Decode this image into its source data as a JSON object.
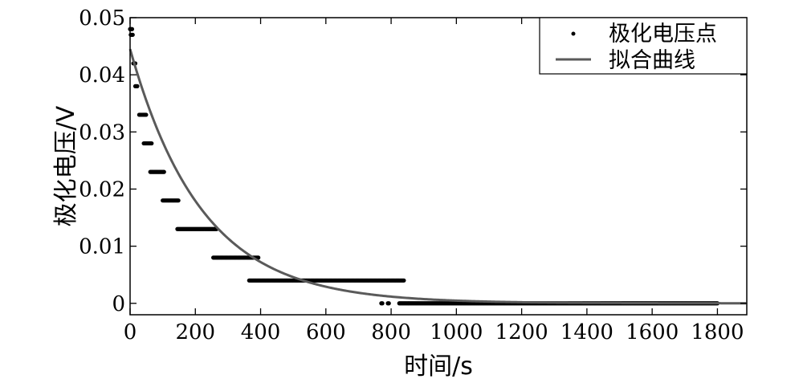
{
  "chart_data": {
    "type": "scatter",
    "xlabel": "时间/s",
    "ylabel": "极化电压/V",
    "xlim": [
      0,
      1890
    ],
    "ylim": [
      -0.002,
      0.05
    ],
    "x_ticks": [
      0,
      200,
      400,
      600,
      800,
      1000,
      1200,
      1400,
      1600,
      1800
    ],
    "x_tick_labels": [
      "0",
      "200",
      "400",
      "600",
      "800",
      "1000",
      "1200",
      "1400",
      "1600",
      "1800"
    ],
    "y_ticks": [
      0,
      0.01,
      0.02,
      0.03,
      0.04,
      0.05
    ],
    "y_tick_labels": [
      "0",
      "0.01",
      "0.02",
      "0.03",
      "0.04",
      "0.05"
    ],
    "grid": false,
    "legend_position": "top-right",
    "colors": {
      "points": "#000000",
      "fit": "#5a5a5a",
      "axes": "#000000"
    },
    "series": [
      {
        "name": "极化电压点",
        "kind": "points",
        "point_groups": [
          {
            "x_range": [
              0,
              8
            ],
            "y": 0.048
          },
          {
            "x_range": [
              2,
              8
            ],
            "y": 0.047
          },
          {
            "x_range": [
              10,
              16
            ],
            "y": 0.042
          },
          {
            "x_range": [
              16,
              24
            ],
            "y": 0.038
          },
          {
            "x_range": [
              28,
              50
            ],
            "y": 0.033
          },
          {
            "x_range": [
              42,
              68
            ],
            "y": 0.028
          },
          {
            "x_range": [
              62,
              105
            ],
            "y": 0.023
          },
          {
            "x_range": [
              100,
              150
            ],
            "y": 0.018
          },
          {
            "x_range": [
              145,
              265
            ],
            "y": 0.013
          },
          {
            "x_range": [
              255,
              395
            ],
            "y": 0.008
          },
          {
            "x_range": [
              365,
              840
            ],
            "y": 0.004
          },
          {
            "x_range": [
              770,
              775
            ],
            "y": 0.0
          },
          {
            "x_range": [
              790,
              795
            ],
            "y": 0.0
          },
          {
            "x_range": [
              825,
              1800
            ],
            "y": 0.0
          }
        ]
      },
      {
        "name": "拟合曲线",
        "kind": "line",
        "model": "y = a * exp(-x / tau)",
        "a": 0.0445,
        "tau": 220,
        "x_range": [
          0,
          1890
        ]
      }
    ]
  }
}
